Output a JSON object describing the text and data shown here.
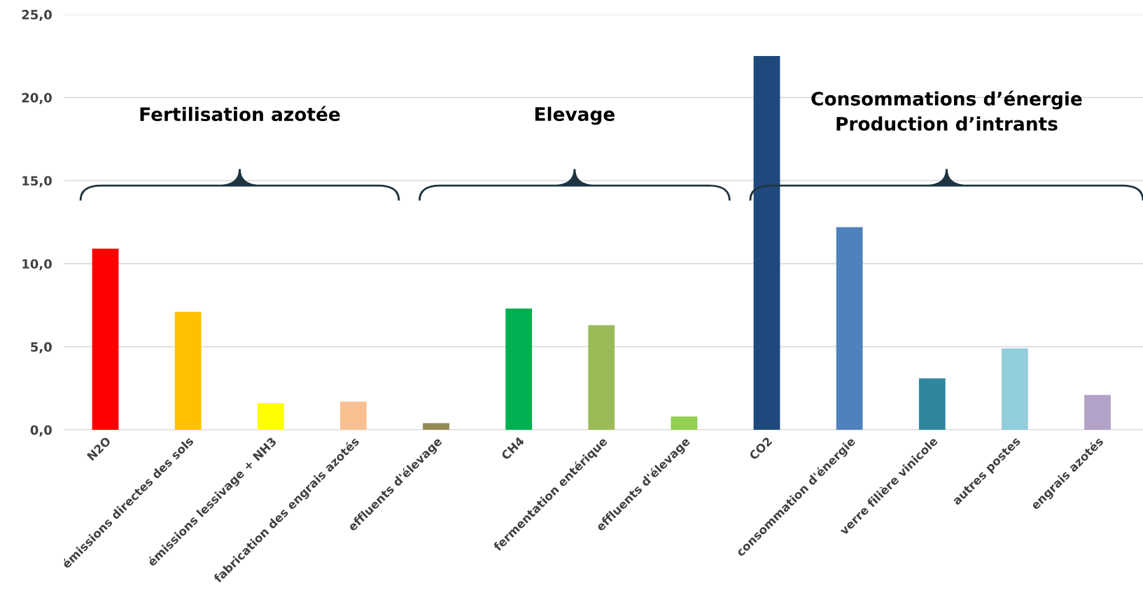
{
  "chart_data": {
    "type": "bar",
    "categories": [
      "N2O",
      "émissions directes des sols",
      "émissions lessivage + NH3",
      "fabrication des engrais azotés",
      "effluents d'élevage",
      "CH4",
      "fermentation entérique",
      "effluents d'élevage",
      "CO2",
      "consommation d'énergie",
      "verre filière vinicole",
      "autres postes",
      "engrais azotés"
    ],
    "values": [
      10.9,
      7.1,
      1.6,
      1.7,
      0.4,
      7.3,
      6.3,
      0.8,
      22.5,
      12.2,
      3.1,
      4.9,
      2.1
    ],
    "colors": [
      "#ff0000",
      "#ffc000",
      "#ffff00",
      "#f8c090",
      "#948a54",
      "#00b050",
      "#9bbb59",
      "#92d050",
      "#1f497d",
      "#4f81bd",
      "#31859c",
      "#92cddc",
      "#b3a2c7"
    ],
    "ylim": [
      0,
      25
    ],
    "yticks": [
      {
        "value": 0,
        "label": "0,0"
      },
      {
        "value": 5,
        "label": "5,0"
      },
      {
        "value": 10,
        "label": "10,0"
      },
      {
        "value": 15,
        "label": "15,0"
      },
      {
        "value": 20,
        "label": "20,0"
      },
      {
        "value": 25,
        "label": "25,0"
      }
    ],
    "grid": "y",
    "legend": false,
    "annotations": [
      "Fertilisation azotée",
      "Elevage",
      "Consommations d’énergie\nProduction d’intrants"
    ]
  }
}
